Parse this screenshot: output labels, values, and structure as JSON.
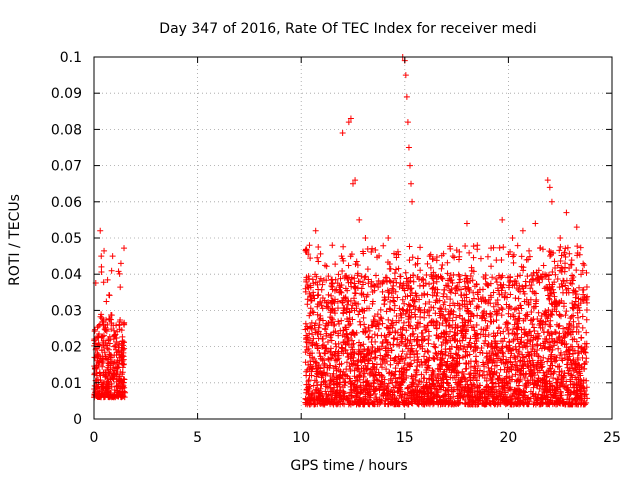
{
  "chart_data": {
    "type": "scatter",
    "title": "Day 347 of 2016, Rate Of TEC Index for receiver medi",
    "xlabel": "GPS time / hours",
    "ylabel": "ROTI / TECUs",
    "xlim": [
      0,
      25
    ],
    "ylim": [
      0,
      0.1
    ],
    "xticks": [
      0,
      5,
      10,
      15,
      20,
      25
    ],
    "xtick_labels": [
      "0",
      "5",
      "10",
      "15",
      "20",
      "25"
    ],
    "yticks": [
      0,
      0.01,
      0.02,
      0.03,
      0.04,
      0.05,
      0.06,
      0.07,
      0.08,
      0.09,
      0.1
    ],
    "ytick_labels": [
      "0",
      "0.01",
      "0.02",
      "0.03",
      "0.04",
      "0.05",
      "0.06",
      "0.07",
      "0.08",
      "0.09",
      "0.1"
    ],
    "grid": true,
    "marker": "+",
    "color": "#ff0000",
    "series": [
      {
        "name": "ROTI",
        "segments": [
          {
            "x_range": [
              0.0,
              1.5
            ],
            "typical": [
              0.006,
              0.028
            ],
            "max": 0.052
          },
          {
            "x_range": [
              10.2,
              23.8
            ],
            "typical": [
              0.004,
              0.04
            ],
            "max": 0.1
          }
        ],
        "x": [
          0.3,
          0.35,
          0.9,
          1.3,
          10.4,
          10.7,
          11.5,
          12.0,
          12.3,
          12.4,
          12.5,
          12.6,
          12.8,
          13.1,
          14.2,
          14.9,
          15.0,
          15.05,
          15.1,
          15.15,
          15.2,
          15.25,
          15.3,
          15.35,
          16.2,
          18.0,
          18.5,
          19.7,
          20.2,
          20.7,
          21.3,
          21.9,
          22.0,
          22.1,
          22.5,
          22.8,
          23.3
        ],
        "y": [
          0.052,
          0.045,
          0.045,
          0.043,
          0.048,
          0.052,
          0.048,
          0.079,
          0.082,
          0.083,
          0.065,
          0.066,
          0.055,
          0.05,
          0.05,
          0.1,
          0.099,
          0.095,
          0.089,
          0.082,
          0.075,
          0.07,
          0.065,
          0.06,
          0.045,
          0.054,
          0.048,
          0.055,
          0.05,
          0.052,
          0.054,
          0.066,
          0.064,
          0.06,
          0.05,
          0.057,
          0.053
        ]
      }
    ]
  }
}
